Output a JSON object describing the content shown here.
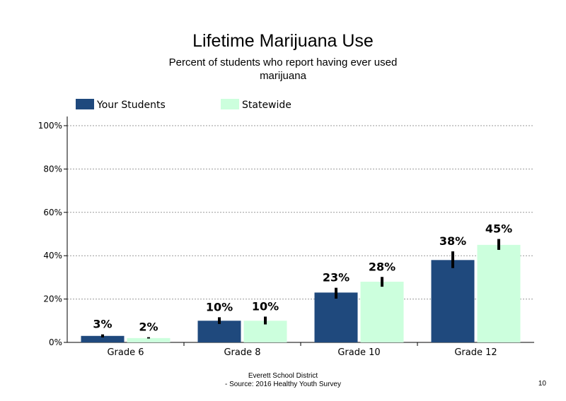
{
  "title": "Lifetime Marijuana Use",
  "subtitle_line1": "Percent of students  who report having ever used",
  "subtitle_line2": "marijuana",
  "footer_line1": "Everett School District",
  "footer_line2": "- Source: 2016 Healthy  Youth Survey",
  "page_number": "10",
  "colors": {
    "your_students": "#1F497D",
    "statewide": "#CCFFDD",
    "error_bar": "#000000",
    "grid": "#999999"
  },
  "chart_data": {
    "type": "bar",
    "title": "Lifetime Marijuana Use",
    "categories": [
      "Grade 6",
      "Grade 8",
      "Grade 10",
      "Grade 12"
    ],
    "series": [
      {
        "name": "Your Students",
        "values": [
          3,
          10,
          23,
          38
        ],
        "labels": [
          "3%",
          "10%",
          "23%",
          "38%"
        ],
        "error_low": [
          2.3,
          8.5,
          20.2,
          34.3
        ],
        "error_high": [
          3.7,
          11.6,
          25.2,
          42.0
        ]
      },
      {
        "name": "Statewide",
        "values": [
          2,
          10,
          28,
          45
        ],
        "labels": [
          "2%",
          "10%",
          "28%",
          "45%"
        ],
        "error_low": [
          1.8,
          8.3,
          25.7,
          42.7
        ],
        "error_high": [
          2.4,
          11.9,
          30.2,
          47.7
        ]
      }
    ],
    "y_ticks": [
      "0%",
      "20%",
      "40%",
      "60%",
      "80%",
      "100%"
    ],
    "ylim": [
      0,
      100
    ],
    "grid": true,
    "legend_position": "top-left"
  }
}
